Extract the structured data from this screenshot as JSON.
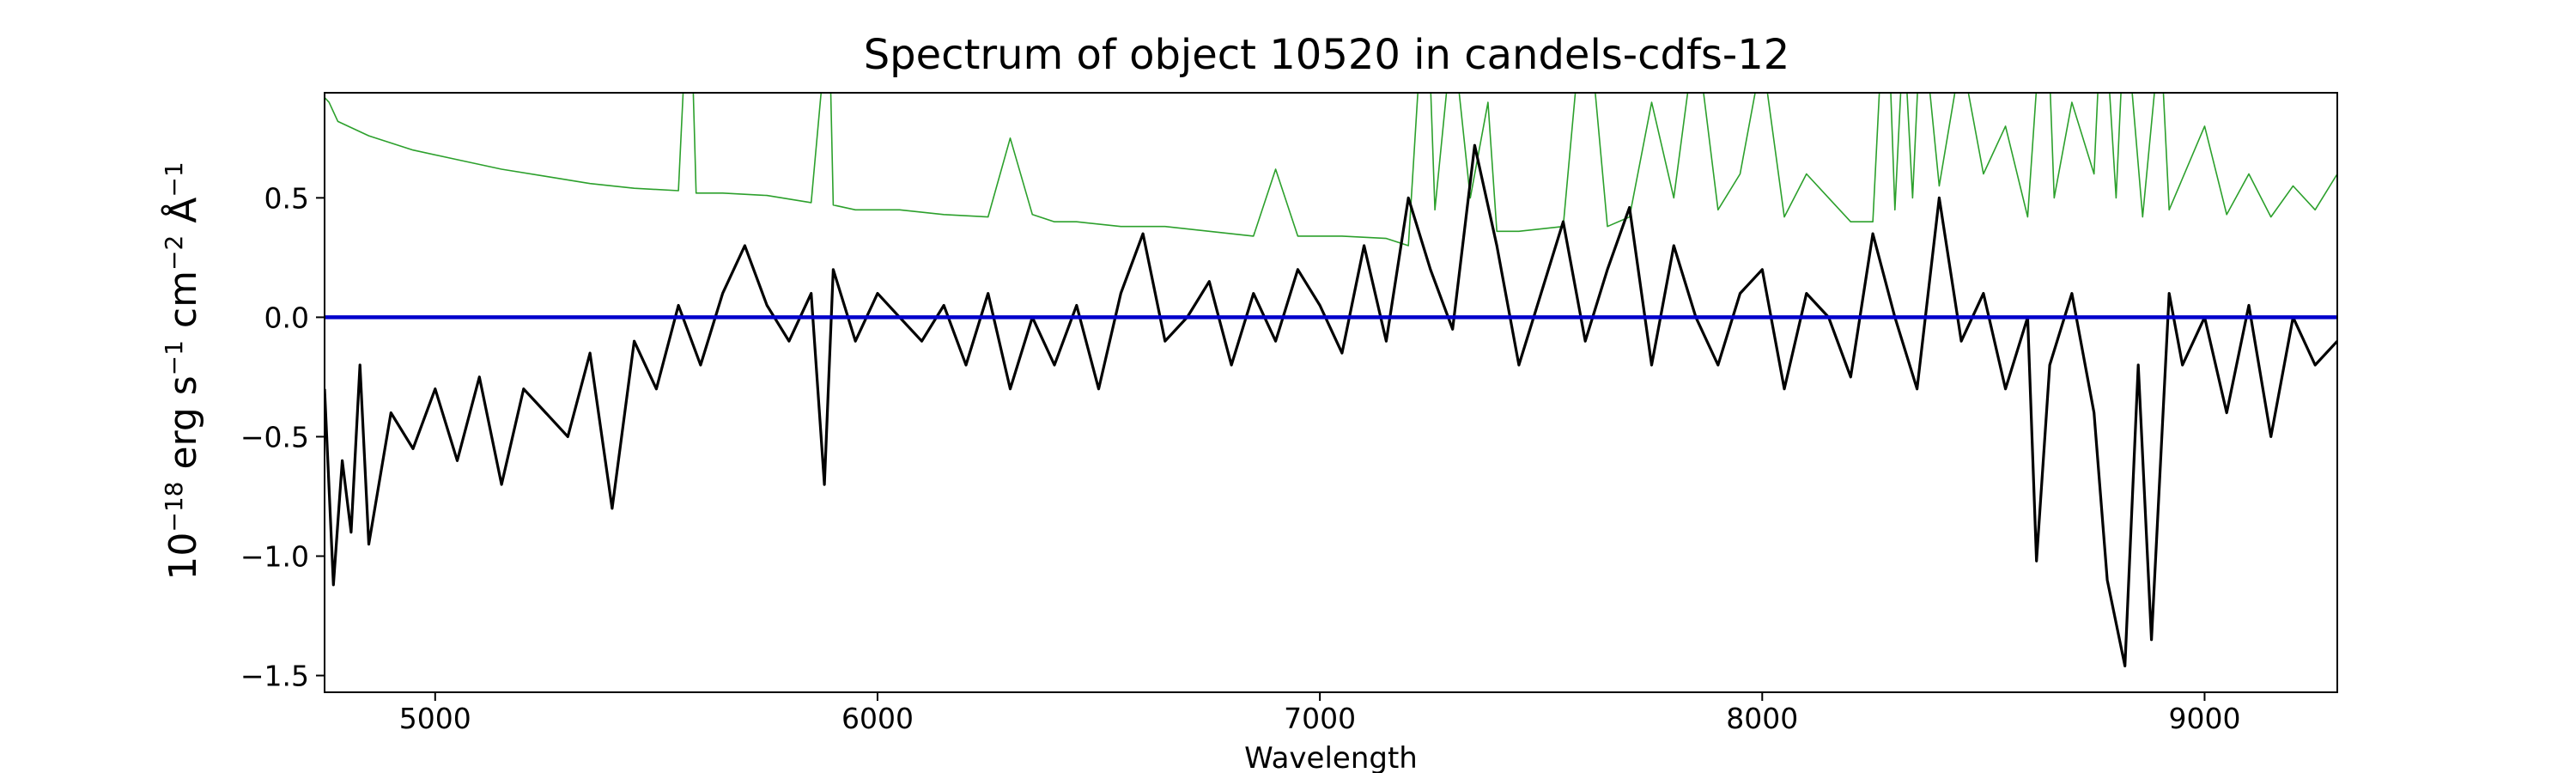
{
  "chart_data": {
    "type": "line",
    "title": "Spectrum of object 10520 in candels-cdfs-12",
    "xlabel": "Wavelength",
    "ylabel": {
      "prefix": "10",
      "exp1": "−18",
      "mid1": " erg s",
      "exp2": "−1",
      "mid2": " cm",
      "exp3": "−2",
      "mid3": " Å",
      "exp4": "−1"
    },
    "xlim": [
      4750,
      9300
    ],
    "ylim": [
      -1.57,
      0.94
    ],
    "xticks": [
      5000,
      6000,
      7000,
      8000,
      9000
    ],
    "xtick_labels": [
      "5000",
      "6000",
      "7000",
      "8000",
      "9000"
    ],
    "yticks": [
      -1.5,
      -1.0,
      -0.5,
      0.0,
      0.5
    ],
    "ytick_labels": [
      "−1.5",
      "−1.0",
      "−0.5",
      "0.0",
      "0.5"
    ],
    "grid": false,
    "series": [
      {
        "role": "error",
        "color": "#2ca02c",
        "x": [
          4750,
          4760,
          4780,
          4850,
          4950,
          5050,
          5150,
          5250,
          5350,
          5450,
          5550,
          5575,
          5590,
          5650,
          5750,
          5850,
          5890,
          5900,
          5950,
          6050,
          6150,
          6250,
          6300,
          6350,
          6400,
          6450,
          6550,
          6650,
          6750,
          6850,
          6900,
          6950,
          7050,
          7150,
          7200,
          7240,
          7260,
          7300,
          7340,
          7380,
          7400,
          7450,
          7550,
          7600,
          7650,
          7700,
          7750,
          7800,
          7850,
          7900,
          7950,
          8000,
          8050,
          8100,
          8150,
          8200,
          8250,
          8280,
          8300,
          8320,
          8340,
          8360,
          8400,
          8450,
          8500,
          8550,
          8600,
          8640,
          8660,
          8700,
          8750,
          8770,
          8800,
          8820,
          8860,
          8900,
          8920,
          9000,
          9050,
          9100,
          9150,
          9200,
          9250,
          9300
        ],
        "y": [
          0.92,
          0.9,
          0.82,
          0.76,
          0.7,
          0.66,
          0.62,
          0.59,
          0.56,
          0.54,
          0.53,
          1.5,
          0.52,
          0.52,
          0.51,
          0.48,
          1.3,
          0.47,
          0.45,
          0.45,
          0.43,
          0.42,
          0.75,
          0.43,
          0.4,
          0.4,
          0.38,
          0.38,
          0.36,
          0.34,
          0.62,
          0.34,
          0.34,
          0.33,
          0.3,
          1.5,
          0.45,
          1.2,
          0.5,
          0.9,
          0.36,
          0.36,
          0.38,
          1.4,
          0.38,
          0.42,
          0.9,
          0.5,
          1.2,
          0.45,
          0.6,
          1.1,
          0.42,
          0.6,
          0.5,
          0.4,
          0.4,
          1.5,
          0.45,
          1.2,
          0.5,
          1.3,
          0.55,
          1.1,
          0.6,
          0.8,
          0.42,
          1.5,
          0.5,
          0.9,
          0.6,
          1.4,
          0.5,
          1.3,
          0.42,
          1.2,
          0.45,
          0.8,
          0.43,
          0.6,
          0.42,
          0.55,
          0.45,
          0.6
        ]
      },
      {
        "role": "flux",
        "color": "#000000",
        "x": [
          4750,
          4770,
          4790,
          4810,
          4830,
          4850,
          4900,
          4950,
          5000,
          5050,
          5100,
          5150,
          5200,
          5250,
          5300,
          5350,
          5400,
          5450,
          5500,
          5550,
          5600,
          5650,
          5700,
          5750,
          5800,
          5850,
          5880,
          5900,
          5950,
          6000,
          6050,
          6100,
          6150,
          6200,
          6250,
          6300,
          6350,
          6400,
          6450,
          6500,
          6550,
          6600,
          6650,
          6700,
          6750,
          6800,
          6850,
          6900,
          6950,
          7000,
          7050,
          7100,
          7150,
          7200,
          7250,
          7300,
          7350,
          7400,
          7450,
          7500,
          7550,
          7600,
          7650,
          7700,
          7750,
          7800,
          7850,
          7900,
          7950,
          8000,
          8050,
          8100,
          8150,
          8200,
          8250,
          8300,
          8350,
          8400,
          8450,
          8500,
          8550,
          8600,
          8620,
          8650,
          8700,
          8750,
          8780,
          8820,
          8850,
          8880,
          8920,
          8950,
          9000,
          9050,
          9100,
          9150,
          9200,
          9250,
          9300
        ],
        "y": [
          -0.3,
          -1.12,
          -0.6,
          -0.9,
          -0.2,
          -0.95,
          -0.4,
          -0.55,
          -0.3,
          -0.6,
          -0.25,
          -0.7,
          -0.3,
          -0.4,
          -0.5,
          -0.15,
          -0.8,
          -0.1,
          -0.3,
          0.05,
          -0.2,
          0.1,
          0.3,
          0.05,
          -0.1,
          0.1,
          -0.7,
          0.2,
          -0.1,
          0.1,
          0.0,
          -0.1,
          0.05,
          -0.2,
          0.1,
          -0.3,
          0.0,
          -0.2,
          0.05,
          -0.3,
          0.1,
          0.35,
          -0.1,
          0.0,
          0.15,
          -0.2,
          0.1,
          -0.1,
          0.2,
          0.05,
          -0.15,
          0.3,
          -0.1,
          0.5,
          0.2,
          -0.05,
          0.72,
          0.3,
          -0.2,
          0.1,
          0.4,
          -0.1,
          0.2,
          0.46,
          -0.2,
          0.3,
          0.0,
          -0.2,
          0.1,
          0.2,
          -0.3,
          0.1,
          0.0,
          -0.25,
          0.35,
          0.0,
          -0.3,
          0.5,
          -0.1,
          0.1,
          -0.3,
          0.0,
          -1.02,
          -0.2,
          0.1,
          -0.4,
          -1.1,
          -1.46,
          -0.2,
          -1.35,
          0.1,
          -0.2,
          0.0,
          -0.4,
          0.05,
          -0.5,
          0.0,
          -0.2,
          -0.1
        ]
      },
      {
        "role": "model",
        "color": "#0000cc",
        "x": [
          4750,
          9300
        ],
        "y": [
          0.0,
          0.0
        ]
      }
    ]
  }
}
